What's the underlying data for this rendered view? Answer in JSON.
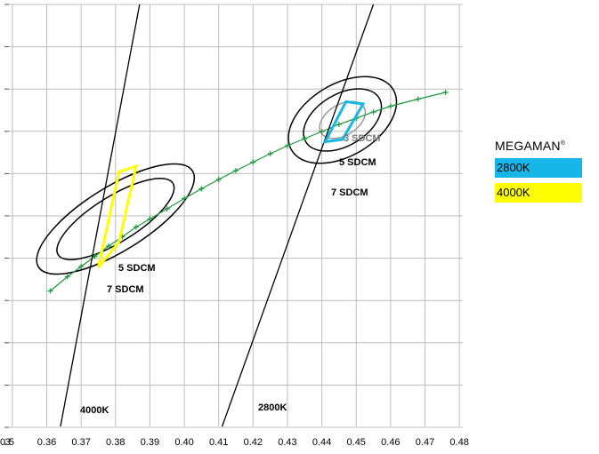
{
  "legend": {
    "title": "MEGAMAN",
    "title_mark": "®",
    "items": [
      {
        "label": "2800K",
        "color": "#17b6e8"
      },
      {
        "label": "4000K",
        "color": "#ffff00"
      }
    ]
  },
  "chart_data": {
    "type": "scatter",
    "x_ticks": [
      "0.35",
      "0.36",
      "0.37",
      "0.38",
      "0.39",
      "0.40",
      "0.41",
      "0.42",
      "0.43",
      "0.44",
      "0.45",
      "0.46",
      "0.47",
      "0.48"
    ],
    "xlim": [
      0.349,
      0.481
    ],
    "ylim": [
      0.31,
      0.405
    ],
    "grid": true,
    "series": [
      {
        "name": "",
        "kind": "planckian-locus",
        "color": "#1a9a3a",
        "x": [
          0.361,
          0.366,
          0.37,
          0.374,
          0.378,
          0.382,
          0.386,
          0.39,
          0.395,
          0.4,
          0.405,
          0.41,
          0.415,
          0.42,
          0.425,
          0.43,
          0.435,
          0.44,
          0.445,
          0.45,
          0.455,
          0.46,
          0.468,
          0.476
        ],
        "y": [
          0.3405,
          0.3437,
          0.346,
          0.3483,
          0.3506,
          0.3527,
          0.3549,
          0.3567,
          0.359,
          0.3613,
          0.3635,
          0.3656,
          0.3676,
          0.3695,
          0.3714,
          0.3732,
          0.3748,
          0.3764,
          0.378,
          0.3794,
          0.3808,
          0.3821,
          0.3837,
          0.3852
        ]
      },
      {
        "name": "4000K",
        "kind": "isotherm",
        "color": "#000000",
        "x": [
          0.364,
          0.387
        ],
        "y": [
          0.31,
          0.405
        ]
      },
      {
        "name": "2800K",
        "kind": "isotherm",
        "color": "#000000",
        "x": [
          0.411,
          0.455
        ],
        "y": [
          0.31,
          0.405
        ]
      }
    ],
    "regions": [
      {
        "name": "2800K",
        "kind": "quadrangle",
        "color": "#17b6e8",
        "x": [
          0.447,
          0.452,
          0.446,
          0.441
        ],
        "y": [
          0.3831,
          0.3826,
          0.3746,
          0.3741
        ]
      },
      {
        "name": "4000K",
        "kind": "quadrangle",
        "color": "#ffff00",
        "x": [
          0.381,
          0.386,
          0.381,
          0.375
        ],
        "y": [
          0.3673,
          0.3686,
          0.3515,
          0.3458
        ]
      }
    ],
    "ellipses": [
      {
        "label": "3 SDCM",
        "center": [
          0.446,
          0.379
        ],
        "rx": 0.0045,
        "ry": 0.0056,
        "tilt_deg": -59,
        "color": "#999999"
      },
      {
        "label": "5 SDCM",
        "center": [
          0.446,
          0.379
        ],
        "rx": 0.0075,
        "ry": 0.0096,
        "tilt_deg": -59,
        "color": "#000000"
      },
      {
        "label": "7 SDCM",
        "center": [
          0.446,
          0.379
        ],
        "rx": 0.0105,
        "ry": 0.0133,
        "tilt_deg": -59,
        "color": "#000000"
      },
      {
        "label": "5 SDCM",
        "center": [
          0.38,
          0.3567
        ],
        "rx": 0.0066,
        "ry": 0.0152,
        "tilt_deg": -58,
        "color": "#000000"
      },
      {
        "label": "7 SDCM",
        "center": [
          0.38,
          0.3567
        ],
        "rx": 0.0093,
        "ry": 0.0204,
        "tilt_deg": -58,
        "color": "#000000"
      }
    ],
    "annotations": [
      "3 SDCM",
      "5 SDCM",
      "7 SDCM",
      "5 SDCM",
      "7 SDCM",
      "4000K",
      "2800K"
    ]
  }
}
